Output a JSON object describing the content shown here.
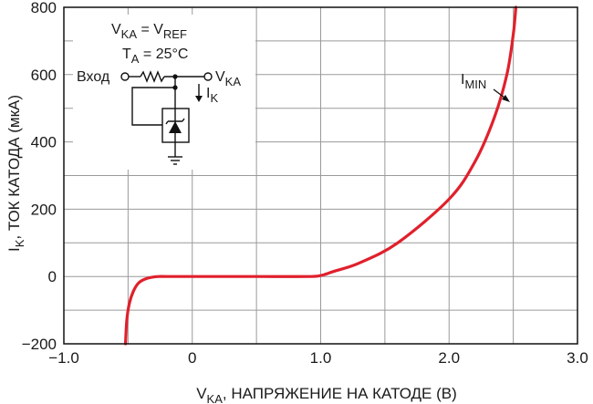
{
  "chart_data": {
    "type": "line",
    "xlabel": "V",
    "xlabel_sub": "KA",
    "xlabel_rest": ", НАПРЯЖЕНИЕ НА КАТОДЕ (В)",
    "ylabel": "I",
    "ylabel_sub": "K",
    "ylabel_rest": ", ТОК КАТОДА (мкА)",
    "xlim": [
      -1.0,
      3.0
    ],
    "ylim": [
      -200,
      800
    ],
    "x_ticks": [
      -1.0,
      0,
      1.0,
      2.0,
      3.0
    ],
    "x_tick_labels": [
      "−1.0",
      "0",
      "1.0",
      "2.0",
      "3.0"
    ],
    "y_ticks": [
      -200,
      0,
      200,
      400,
      600,
      800
    ],
    "y_tick_labels": [
      "−200",
      "0",
      "200",
      "400",
      "600",
      "800"
    ],
    "grid": true,
    "curve_color": "#e0202c",
    "series": [
      {
        "x": [
          -0.52,
          -0.51,
          -0.49,
          -0.46,
          -0.42,
          -0.37,
          -0.31,
          -0.26,
          -0.2,
          0.0,
          0.5,
          0.9,
          1.0,
          1.1,
          1.3,
          1.6,
          2.0,
          2.2,
          2.35,
          2.45,
          2.5,
          2.52
        ],
        "y": [
          -200,
          -130,
          -80,
          -45,
          -20,
          -8,
          -2,
          0,
          0,
          0,
          0,
          0,
          3,
          15,
          40,
          100,
          230,
          340,
          470,
          600,
          720,
          800
        ]
      }
    ],
    "annotations": [
      {
        "label": "I",
        "sub": "MIN",
        "x": 2.4,
        "y": 525
      }
    ],
    "inset": {
      "line1_main": "V",
      "line1_sub": "KA",
      "line1_rest": " = V",
      "line1_sub2": "REF",
      "line2_main": "T",
      "line2_sub": "A",
      "line2_rest": " = 25°C",
      "input_label": "Вход",
      "output_main": "V",
      "output_sub": "KA",
      "current_main": "I",
      "current_sub": "K"
    }
  }
}
